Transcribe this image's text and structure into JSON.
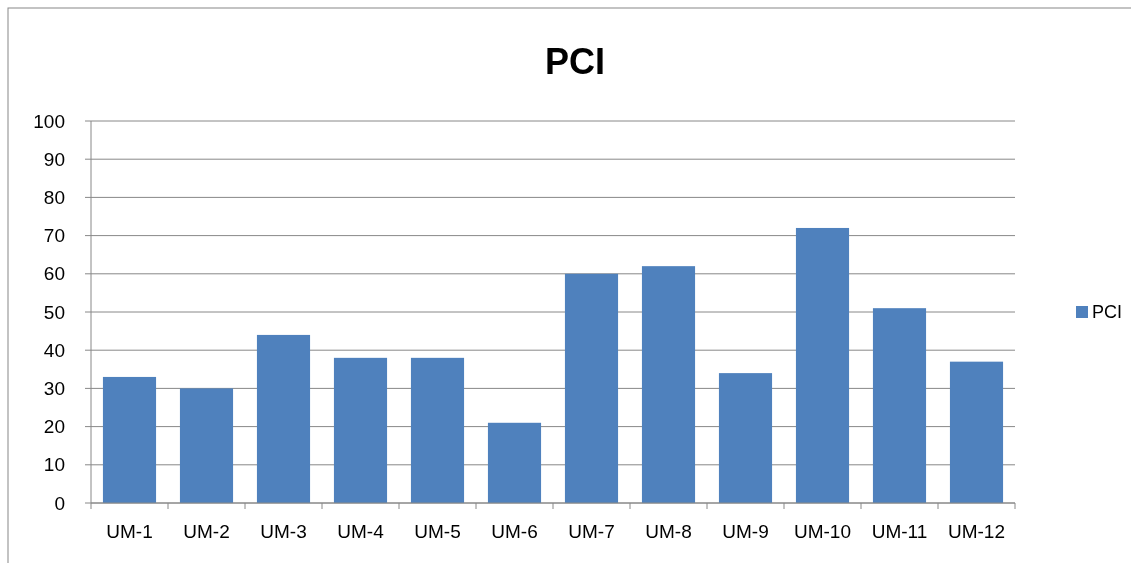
{
  "chart_data": {
    "type": "bar",
    "title": "PCI",
    "categories": [
      "UM-1",
      "UM-2",
      "UM-3",
      "UM-4",
      "UM-5",
      "UM-6",
      "UM-7",
      "UM-8",
      "UM-9",
      "UM-10",
      "UM-11",
      "UM-12"
    ],
    "series": [
      {
        "name": "PCI",
        "color": "#4f81bd",
        "values": [
          33,
          30,
          44,
          38,
          38,
          21,
          60,
          62,
          34,
          72,
          51,
          37
        ]
      }
    ],
    "ylim": [
      0,
      100
    ],
    "yticks": [
      0,
      10,
      20,
      30,
      40,
      50,
      60,
      70,
      80,
      90,
      100
    ],
    "grid": "y",
    "legend": "right"
  }
}
